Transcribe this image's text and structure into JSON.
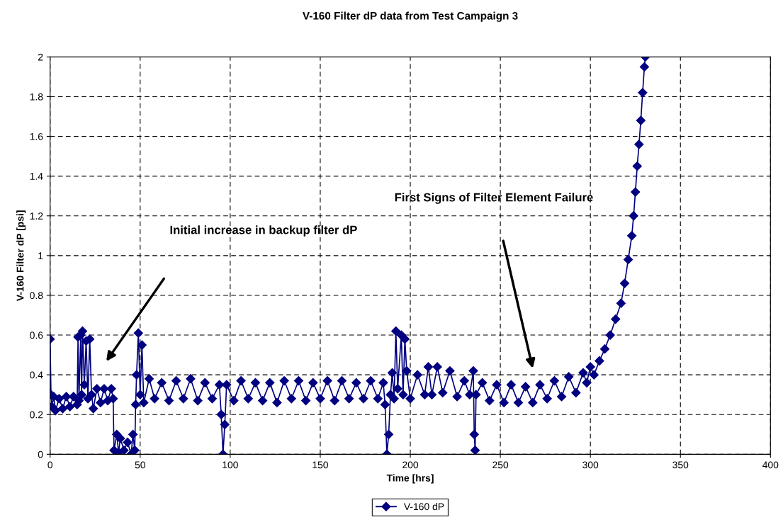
{
  "chart_data": {
    "type": "line",
    "title": "V-160 Filter dP data from Test Campaign 3",
    "xlabel": "Time [hrs]",
    "ylabel": "V-160 Filter dP [psi]",
    "x": [
      0,
      0.5,
      1,
      2,
      3,
      5,
      7,
      9,
      11,
      13,
      15,
      15.5,
      16,
      17,
      17.5,
      18,
      19,
      20,
      21,
      22,
      23,
      24,
      26,
      28,
      30,
      32,
      34,
      35,
      35.5,
      37,
      38,
      39,
      41,
      43,
      45,
      46,
      47,
      47.5,
      48,
      49,
      50,
      51,
      52,
      55,
      58,
      62,
      66,
      70,
      74,
      78,
      82,
      86,
      90,
      94,
      95,
      96,
      97,
      98,
      102,
      106,
      110,
      114,
      118,
      122,
      126,
      130,
      134,
      138,
      142,
      146,
      150,
      154,
      158,
      162,
      166,
      170,
      174,
      178,
      182,
      185,
      186,
      187,
      188,
      189,
      190,
      191,
      192,
      193,
      195,
      196,
      197,
      198,
      200,
      204,
      208,
      210,
      212,
      215,
      218,
      222,
      226,
      230,
      233,
      235,
      235.5,
      236,
      236.5,
      240,
      244,
      248,
      252,
      256,
      260,
      264,
      268,
      272,
      276,
      280,
      284,
      288,
      292,
      296,
      298,
      300,
      302,
      305,
      308,
      311,
      314,
      317,
      319,
      321,
      323,
      324,
      325,
      326,
      327,
      328,
      329,
      330,
      330.5
    ],
    "series": [
      {
        "name": "V-160 dP",
        "color": "#000080",
        "values": [
          0.58,
          0.3,
          0.24,
          0.29,
          0.22,
          0.28,
          0.23,
          0.29,
          0.24,
          0.29,
          0.25,
          0.59,
          0.27,
          0.6,
          0.3,
          0.62,
          0.35,
          0.57,
          0.28,
          0.58,
          0.3,
          0.23,
          0.33,
          0.26,
          0.33,
          0.27,
          0.33,
          0.28,
          0.02,
          0.1,
          0.01,
          0.08,
          0.02,
          0.06,
          0.0,
          0.1,
          0.02,
          0.25,
          0.4,
          0.61,
          0.3,
          0.55,
          0.26,
          0.38,
          0.28,
          0.36,
          0.27,
          0.37,
          0.28,
          0.38,
          0.27,
          0.36,
          0.28,
          0.35,
          0.2,
          0.0,
          0.15,
          0.35,
          0.27,
          0.37,
          0.28,
          0.36,
          0.27,
          0.36,
          0.26,
          0.37,
          0.28,
          0.37,
          0.27,
          0.36,
          0.28,
          0.37,
          0.27,
          0.37,
          0.28,
          0.36,
          0.28,
          0.37,
          0.28,
          0.36,
          0.25,
          0.0,
          0.1,
          0.3,
          0.41,
          0.28,
          0.62,
          0.33,
          0.6,
          0.3,
          0.58,
          0.42,
          0.28,
          0.4,
          0.3,
          0.44,
          0.3,
          0.44,
          0.31,
          0.42,
          0.29,
          0.37,
          0.3,
          0.42,
          0.1,
          0.02,
          0.3,
          0.36,
          0.27,
          0.35,
          0.26,
          0.35,
          0.26,
          0.34,
          0.26,
          0.35,
          0.28,
          0.37,
          0.29,
          0.39,
          0.31,
          0.41,
          0.36,
          0.44,
          0.4,
          0.47,
          0.53,
          0.6,
          0.68,
          0.76,
          0.86,
          0.98,
          1.1,
          1.2,
          1.32,
          1.45,
          1.56,
          1.68,
          1.82,
          1.95,
          2.0
        ]
      }
    ],
    "xlim": [
      0,
      400
    ],
    "xticks": [
      0,
      50,
      100,
      150,
      200,
      250,
      300,
      350,
      400
    ],
    "ylim": [
      0,
      2
    ],
    "yticks": [
      0,
      0.2,
      0.4,
      0.6,
      0.8,
      1,
      1.2,
      1.4,
      1.6,
      1.8,
      2
    ],
    "grid": true,
    "legend": "bottom",
    "marker": "diamond",
    "line_style": "solid",
    "annotations": [
      "Initial increase in backup filter dP",
      "First Signs of Filter Element Failure"
    ]
  }
}
